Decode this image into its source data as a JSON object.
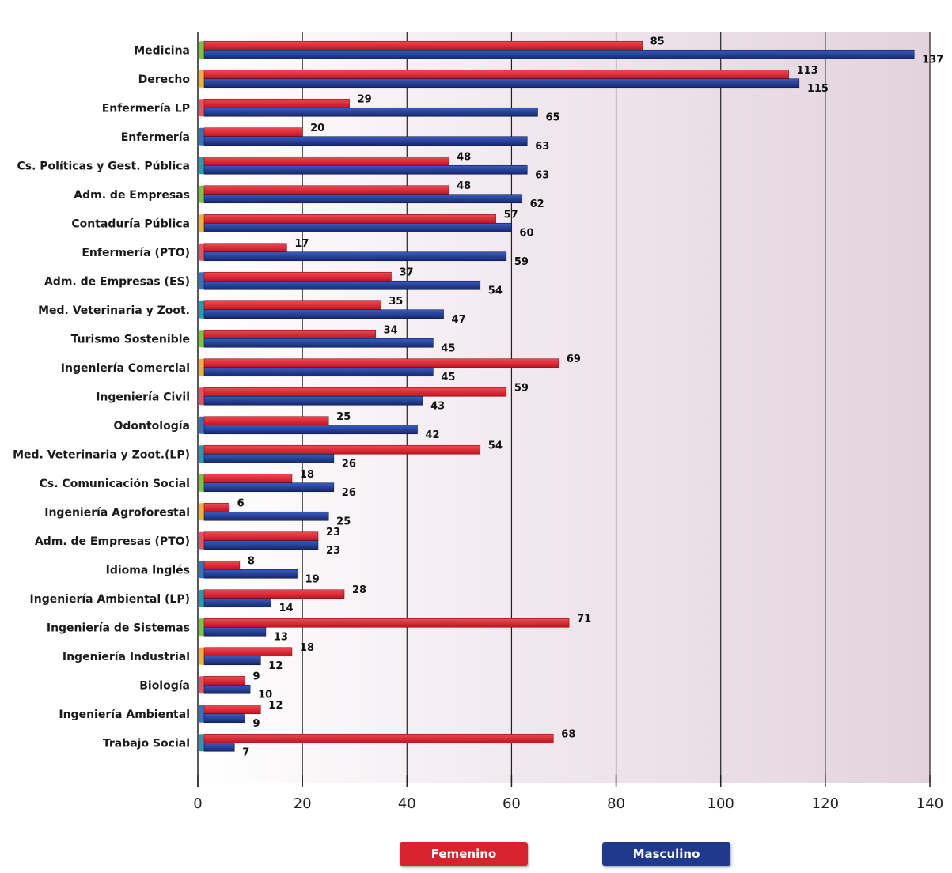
{
  "chart_data": {
    "type": "bar",
    "orientation": "horizontal",
    "title": "",
    "xlabel": "",
    "ylabel": "",
    "xlim": [
      0,
      140
    ],
    "ticks": [
      "0",
      "20",
      "40",
      "60",
      "80",
      "100",
      "120",
      "140"
    ],
    "grid": true,
    "legend_position": "bottom",
    "categories": [
      "Medicina",
      "Derecho",
      "Enfermería LP",
      "Enfermería",
      "Cs. Políticas y Gest. Pública",
      "Adm. de Empresas",
      "Contaduría Pública",
      "Enfermería (PTO)",
      "Adm. de Empresas (ES)",
      "Med. Veterinaria y Zoot.",
      "Turismo Sostenible",
      "Ingeniería Comercial",
      "Ingeniería Civil",
      "Odontología",
      "Med. Veterinaria y Zoot.(LP)",
      "Cs. Comunicación Social",
      "Ingeniería Agroforestal",
      "Adm. de Empresas (PTO)",
      "Idioma Inglés",
      "Ingeniería Ambiental (LP)",
      "Ingeniería de Sistemas",
      "Ingeniería Industrial",
      "Biología",
      "Ingeniería Ambiental",
      "Trabajo Social"
    ],
    "series": [
      {
        "name": "Femenino",
        "color": "#d8232f",
        "values": [
          85,
          113,
          29,
          20,
          48,
          48,
          57,
          17,
          37,
          35,
          34,
          69,
          59,
          25,
          54,
          18,
          6,
          23,
          8,
          28,
          71,
          18,
          9,
          12,
          68
        ]
      },
      {
        "name": "Masculino",
        "color": "#1f3a8c",
        "values": [
          137,
          115,
          65,
          63,
          63,
          62,
          60,
          59,
          54,
          47,
          45,
          45,
          43,
          42,
          26,
          26,
          25,
          23,
          19,
          14,
          13,
          12,
          10,
          9,
          7
        ]
      }
    ]
  },
  "legend": {
    "femenino": "Femenino",
    "masculino": "Masculino"
  },
  "colors": {
    "femenino": "#d8232f",
    "masculino": "#1f3a8c",
    "background_tint": "#e9dde4",
    "stub_colors": [
      "#7dc242",
      "#f2b134",
      "#e8506a",
      "#3a6fc4",
      "#2a9ab0"
    ]
  }
}
